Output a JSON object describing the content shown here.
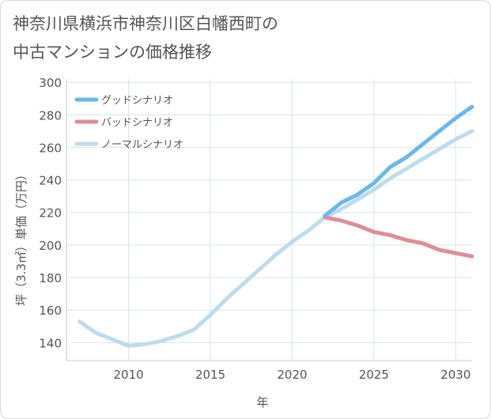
{
  "title_lines": [
    "神奈川県横浜市神奈川区白幡西町の",
    "中古マンションの価格推移"
  ],
  "chart_data": {
    "type": "line",
    "title": "神奈川県横浜市神奈川区白幡西町の中古マンションの価格推移",
    "xlabel": "年",
    "ylabel": "坪（3.3㎡）単価（万円）",
    "xlim": [
      2006.2,
      2031
    ],
    "ylim": [
      129,
      302
    ],
    "x_ticks": [
      2010,
      2015,
      2020,
      2025,
      2030
    ],
    "y_ticks": [
      140,
      160,
      180,
      200,
      220,
      240,
      260,
      280,
      300
    ],
    "legend_position": "top-left",
    "series": [
      {
        "name": "グッドシナリオ",
        "color": "#6cb8ea",
        "x": [
          2022,
          2023,
          2024,
          2025,
          2026,
          2027,
          2028,
          2029,
          2030,
          2031
        ],
        "values": [
          218,
          226,
          231,
          238,
          248,
          254,
          262,
          270,
          278,
          285
        ]
      },
      {
        "name": "バッドシナリオ",
        "color": "#df8e96",
        "x": [
          2022,
          2023,
          2024,
          2025,
          2026,
          2027,
          2028,
          2029,
          2030,
          2031
        ],
        "values": [
          217,
          215,
          212,
          208,
          206,
          203,
          201,
          197,
          195,
          193
        ]
      },
      {
        "name": "ノーマルシナリオ",
        "color": "#bddcec",
        "x": [
          2007,
          2008,
          2009,
          2010,
          2011,
          2012,
          2013,
          2014,
          2015,
          2016,
          2017,
          2018,
          2019,
          2020,
          2021,
          2022,
          2023,
          2024,
          2025,
          2026,
          2027,
          2028,
          2029,
          2030,
          2031
        ],
        "values": [
          153,
          146,
          142,
          138,
          139,
          141,
          144,
          148,
          157,
          167,
          176,
          185,
          194,
          202,
          209,
          217,
          222,
          228,
          234,
          241,
          247,
          253,
          259,
          265,
          270
        ]
      }
    ]
  }
}
